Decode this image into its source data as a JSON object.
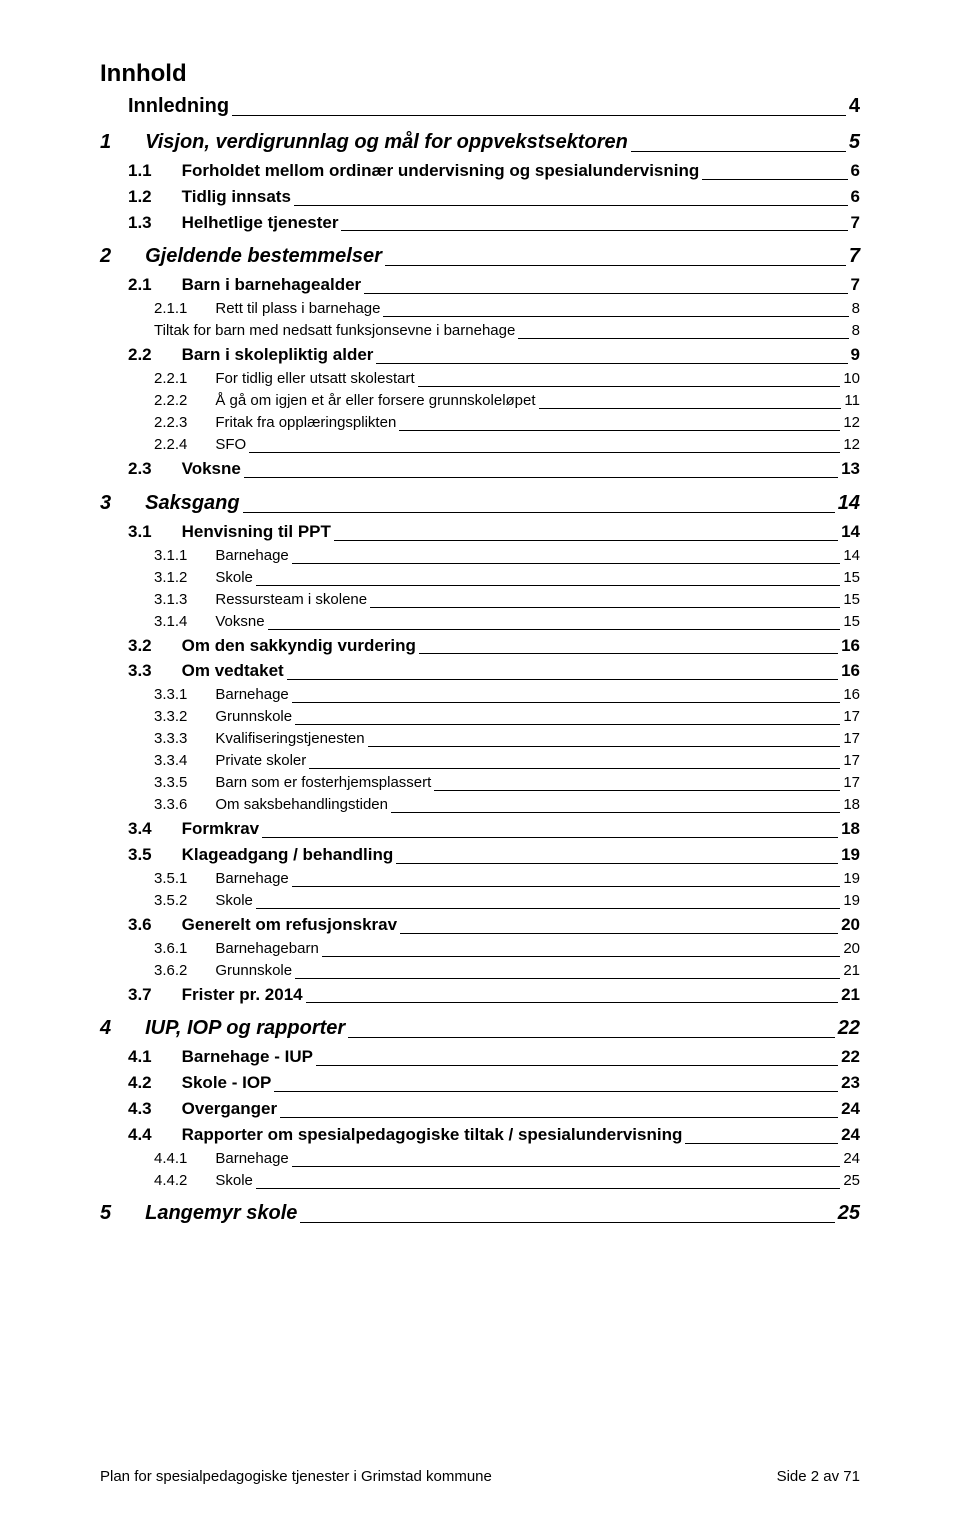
{
  "title": "Innhold",
  "footer_left": "Plan for spesialpedagogiske tjenester i Grimstad kommune",
  "footer_right": "Side 2 av 71",
  "entries": [
    {
      "level": "top-indent",
      "label": "Innledning",
      "page": "4"
    },
    {
      "level": "chapter",
      "num": "1",
      "label": "Visjon, verdigrunnlag og mål for oppvekstsektoren",
      "page": "5",
      "gap": true
    },
    {
      "level": "l2",
      "num": "1.1",
      "label": "Forholdet mellom ordinær undervisning og spesialundervisning",
      "page": "6"
    },
    {
      "level": "l2",
      "num": "1.2",
      "label": "Tidlig innsats",
      "page": "6"
    },
    {
      "level": "l2",
      "num": "1.3",
      "label": "Helhetlige tjenester",
      "page": "7"
    },
    {
      "level": "chapter",
      "num": "2",
      "label": "Gjeldende bestemmelser",
      "page": "7",
      "gap": true
    },
    {
      "level": "l2",
      "num": "2.1",
      "label": "Barn i barnehagealder",
      "page": "7"
    },
    {
      "level": "l3",
      "num": "2.1.1",
      "label": "Rett til plass i barnehage",
      "page": "8"
    },
    {
      "level": "l3-indent",
      "label": "Tiltak for barn med nedsatt funksjonsevne i barnehage",
      "page": "8"
    },
    {
      "level": "l2",
      "num": "2.2",
      "label": "Barn i skolepliktig alder",
      "page": "9"
    },
    {
      "level": "l3",
      "num": "2.2.1",
      "label": "For tidlig eller utsatt skolestart",
      "page": "10"
    },
    {
      "level": "l3",
      "num": "2.2.2",
      "label": "Å gå om igjen et år eller forsere grunnskoleløpet",
      "page": "11"
    },
    {
      "level": "l3",
      "num": "2.2.3",
      "label": "Fritak fra opplæringsplikten",
      "page": "12"
    },
    {
      "level": "l3",
      "num": "2.2.4",
      "label": "SFO",
      "page": "12"
    },
    {
      "level": "l2",
      "num": "2.3",
      "label": "Voksne",
      "page": "13"
    },
    {
      "level": "chapter",
      "num": "3",
      "label": "Saksgang",
      "page": "14",
      "gap": true
    },
    {
      "level": "l2",
      "num": "3.1",
      "label": "Henvisning til PPT",
      "page": "14"
    },
    {
      "level": "l3",
      "num": "3.1.1",
      "label": "Barnehage",
      "page": "14"
    },
    {
      "level": "l3",
      "num": "3.1.2",
      "label": "Skole",
      "page": "15"
    },
    {
      "level": "l3",
      "num": "3.1.3",
      "label": "Ressursteam i skolene",
      "page": "15"
    },
    {
      "level": "l3",
      "num": "3.1.4",
      "label": "Voksne",
      "page": "15"
    },
    {
      "level": "l2",
      "num": "3.2",
      "label": "Om den sakkyndig vurdering",
      "page": "16"
    },
    {
      "level": "l2",
      "num": "3.3",
      "label": "Om vedtaket",
      "page": "16"
    },
    {
      "level": "l3",
      "num": "3.3.1",
      "label": "Barnehage",
      "page": "16"
    },
    {
      "level": "l3",
      "num": "3.3.2",
      "label": "Grunnskole",
      "page": "17"
    },
    {
      "level": "l3",
      "num": "3.3.3",
      "label": "Kvalifiseringstjenesten",
      "page": "17"
    },
    {
      "level": "l3",
      "num": "3.3.4",
      "label": "Private skoler",
      "page": "17"
    },
    {
      "level": "l3",
      "num": "3.3.5",
      "label": "Barn som er fosterhjemsplassert",
      "page": "17"
    },
    {
      "level": "l3",
      "num": "3.3.6",
      "label": "Om saksbehandlingstiden",
      "page": "18"
    },
    {
      "level": "l2",
      "num": "3.4",
      "label": "Formkrav",
      "page": "18"
    },
    {
      "level": "l2",
      "num": "3.5",
      "label": "Klageadgang / behandling",
      "page": "19"
    },
    {
      "level": "l3",
      "num": "3.5.1",
      "label": "Barnehage",
      "page": "19"
    },
    {
      "level": "l3",
      "num": "3.5.2",
      "label": "Skole",
      "page": "19"
    },
    {
      "level": "l2",
      "num": "3.6",
      "label": "Generelt om refusjonskrav",
      "page": "20"
    },
    {
      "level": "l3",
      "num": "3.6.1",
      "label": "Barnehagebarn",
      "page": "20"
    },
    {
      "level": "l3",
      "num": "3.6.2",
      "label": "Grunnskole",
      "page": "21"
    },
    {
      "level": "l2",
      "num": "3.7",
      "label": "Frister pr. 2014",
      "page": "21"
    },
    {
      "level": "chapter",
      "num": "4",
      "label": "IUP, IOP og rapporter",
      "page": "22",
      "gap": true
    },
    {
      "level": "l2",
      "num": "4.1",
      "label": "Barnehage - IUP",
      "page": "22"
    },
    {
      "level": "l2",
      "num": "4.2",
      "label": "Skole - IOP",
      "page": "23"
    },
    {
      "level": "l2",
      "num": "4.3",
      "label": "Overganger",
      "page": "24"
    },
    {
      "level": "l2",
      "num": "4.4",
      "label": "Rapporter om spesialpedagogiske tiltak / spesialundervisning",
      "page": "24"
    },
    {
      "level": "l3",
      "num": "4.4.1",
      "label": "Barnehage",
      "page": "24"
    },
    {
      "level": "l3",
      "num": "4.4.2",
      "label": "Skole",
      "page": "25"
    },
    {
      "level": "chapter",
      "num": "5",
      "label": "Langemyr skole",
      "page": "25",
      "gap": true
    }
  ]
}
